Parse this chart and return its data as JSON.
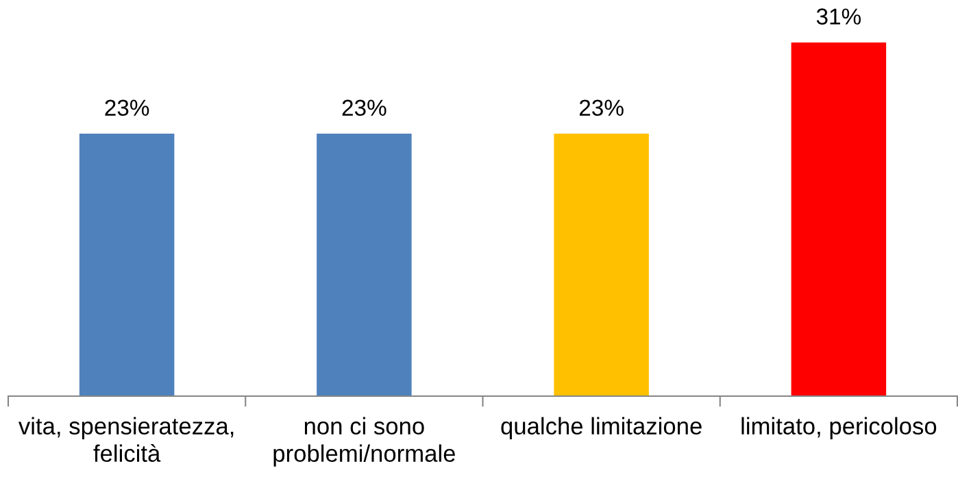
{
  "chart_data": {
    "type": "bar",
    "categories": [
      "vita, spensieratezza,\nfelicità",
      "non ci sono\nproblemi/normale",
      "qualche limitazione",
      "limitato, pericoloso"
    ],
    "values": [
      23,
      23,
      23,
      31
    ],
    "colors": [
      "#4f81bd",
      "#4f81bd",
      "#ffc000",
      "#ff0000"
    ],
    "value_labels": [
      "23%",
      "23%",
      "23%",
      "31%"
    ],
    "tick_labels": "x",
    "grid": false
  }
}
